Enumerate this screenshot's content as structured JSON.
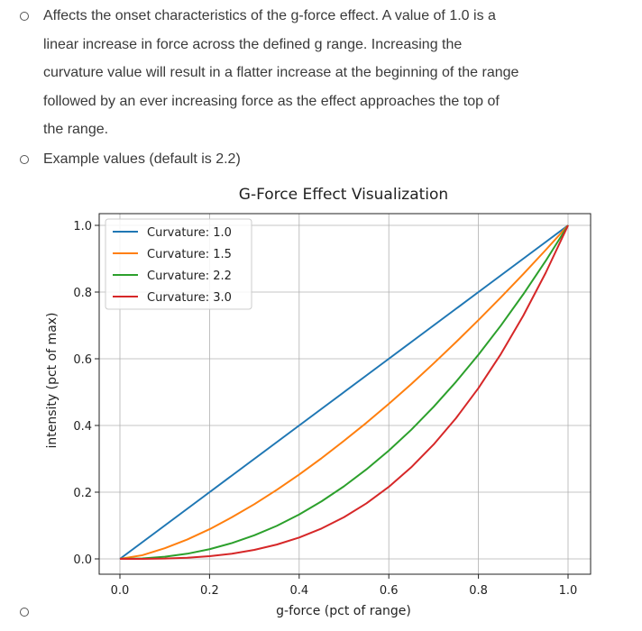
{
  "bullets": [
    {
      "lines": [
        "Affects the onset characteristics of the g-force effect.  A value of 1.0 is a",
        "linear increase in force across the defined g range.  Increasing the",
        "curvature value will result in a flatter increase at the beginning of the range",
        "followed by an ever increasing force as the effect approaches the top of",
        "the range."
      ]
    },
    {
      "lines": [
        "Example values (default is 2.2)"
      ]
    },
    {
      "lines": [
        ""
      ]
    }
  ],
  "chart_data": {
    "type": "line",
    "title": "G-Force Effect Visualization",
    "xlabel": "g-force (pct of range)",
    "ylabel": "intensity (pct of max)",
    "xlim": [
      0.0,
      1.0
    ],
    "ylim": [
      0.0,
      1.0
    ],
    "xticks": [
      "0.0",
      "0.2",
      "0.4",
      "0.6",
      "0.8",
      "1.0"
    ],
    "yticks": [
      "0.0",
      "0.2",
      "0.4",
      "0.6",
      "0.8",
      "1.0"
    ],
    "grid": true,
    "legend_position": "top-left",
    "x": [
      0.0,
      0.05,
      0.1,
      0.15,
      0.2,
      0.25,
      0.3,
      0.35,
      0.4,
      0.45,
      0.5,
      0.55,
      0.6,
      0.65,
      0.7,
      0.75,
      0.8,
      0.85,
      0.9,
      0.95,
      1.0
    ],
    "series": [
      {
        "name": "Curvature: 1.0",
        "color": "#1f77b4",
        "values": [
          0.0,
          0.05,
          0.1,
          0.15,
          0.2,
          0.25,
          0.3,
          0.35,
          0.4,
          0.45,
          0.5,
          0.55,
          0.6,
          0.65,
          0.7,
          0.75,
          0.8,
          0.85,
          0.9,
          0.95,
          1.0
        ]
      },
      {
        "name": "Curvature: 1.5",
        "color": "#ff7f0e",
        "values": [
          0.0,
          0.011,
          0.032,
          0.058,
          0.089,
          0.125,
          0.164,
          0.207,
          0.253,
          0.302,
          0.354,
          0.408,
          0.465,
          0.524,
          0.586,
          0.65,
          0.716,
          0.784,
          0.854,
          0.926,
          1.0
        ]
      },
      {
        "name": "Curvature: 2.2",
        "color": "#2ca02c",
        "values": [
          0.0,
          0.0014,
          0.0063,
          0.0154,
          0.0291,
          0.0474,
          0.0707,
          0.099,
          0.1331,
          0.1726,
          0.2176,
          0.2683,
          0.3247,
          0.387,
          0.456,
          0.531,
          0.6122,
          0.6995,
          0.7932,
          0.8933,
          1.0
        ]
      },
      {
        "name": "Curvature: 3.0",
        "color": "#d62728",
        "values": [
          0.0,
          0.0001,
          0.001,
          0.0034,
          0.008,
          0.0156,
          0.027,
          0.0429,
          0.064,
          0.0911,
          0.125,
          0.1664,
          0.216,
          0.2746,
          0.343,
          0.4219,
          0.512,
          0.6141,
          0.729,
          0.8574,
          1.0
        ]
      }
    ]
  }
}
